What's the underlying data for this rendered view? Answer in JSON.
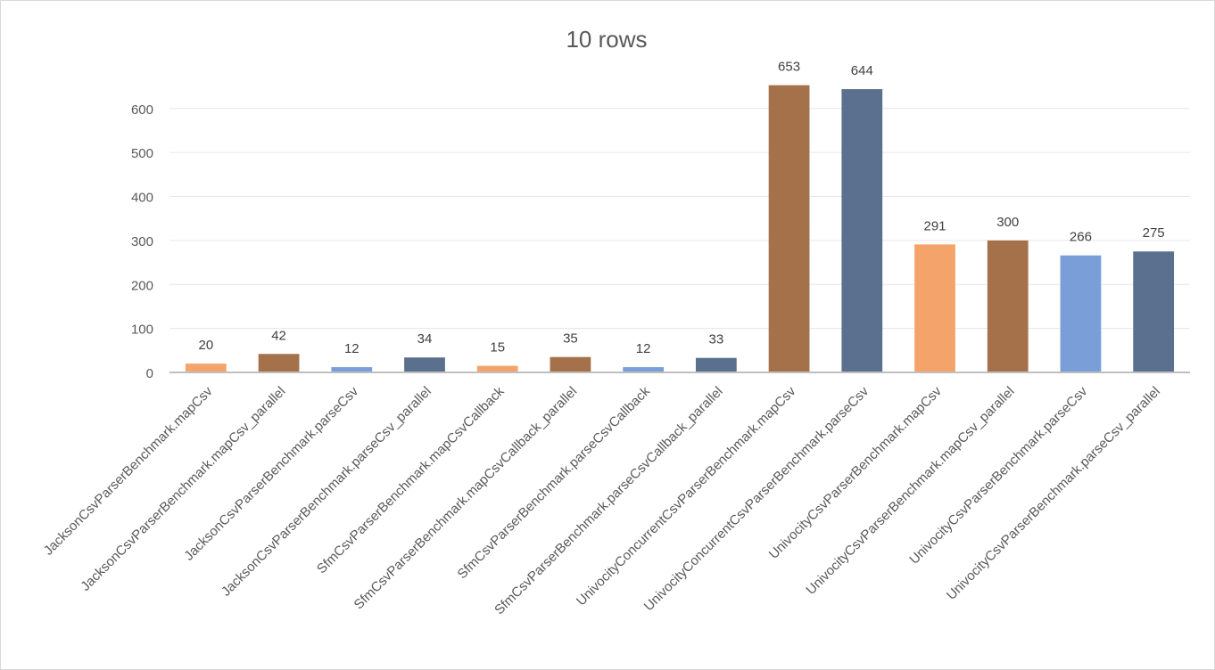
{
  "chart_data": {
    "type": "bar",
    "title": "10 rows",
    "xlabel": "",
    "ylabel": "",
    "ylim": [
      0,
      700
    ],
    "yticks": [
      0,
      100,
      200,
      300,
      400,
      500,
      600
    ],
    "grid": true,
    "categories": [
      "JacksonCsvParserBenchmark.mapCsv",
      "JacksonCsvParserBenchmark.mapCsv_parallel",
      "JacksonCsvParserBenchmark.parseCsv",
      "JacksonCsvParserBenchmark.parseCsv_parallel",
      "SfmCsvParserBenchmark.mapCsvCallback",
      "SfmCsvParserBenchmark.mapCsvCallback_parallel",
      "SfmCsvParserBenchmark.parseCsvCallback",
      "SfmCsvParserBenchmark.parseCsvCallback_parallel",
      "UnivocityConcurrentCsvParserBenchmark.mapCsv",
      "UnivocityConcurrentCsvParserBenchmark.parseCsv",
      "UnivocityCsvParserBenchmark.mapCsv",
      "UnivocityCsvParserBenchmark.mapCsv_parallel",
      "UnivocityCsvParserBenchmark.parseCsv",
      "UnivocityCsvParserBenchmark.parseCsv_parallel"
    ],
    "values": [
      20,
      42,
      12,
      34,
      15,
      35,
      12,
      33,
      653,
      644,
      291,
      300,
      266,
      275
    ],
    "colors": [
      "#f4a46a",
      "#a5714b",
      "#7a9fd8",
      "#5b6f8e",
      "#f4a46a",
      "#a5714b",
      "#7a9fd8",
      "#5b6f8e",
      "#a5714b",
      "#5b6f8e",
      "#f4a46a",
      "#a5714b",
      "#7a9fd8",
      "#5b6f8e"
    ]
  }
}
